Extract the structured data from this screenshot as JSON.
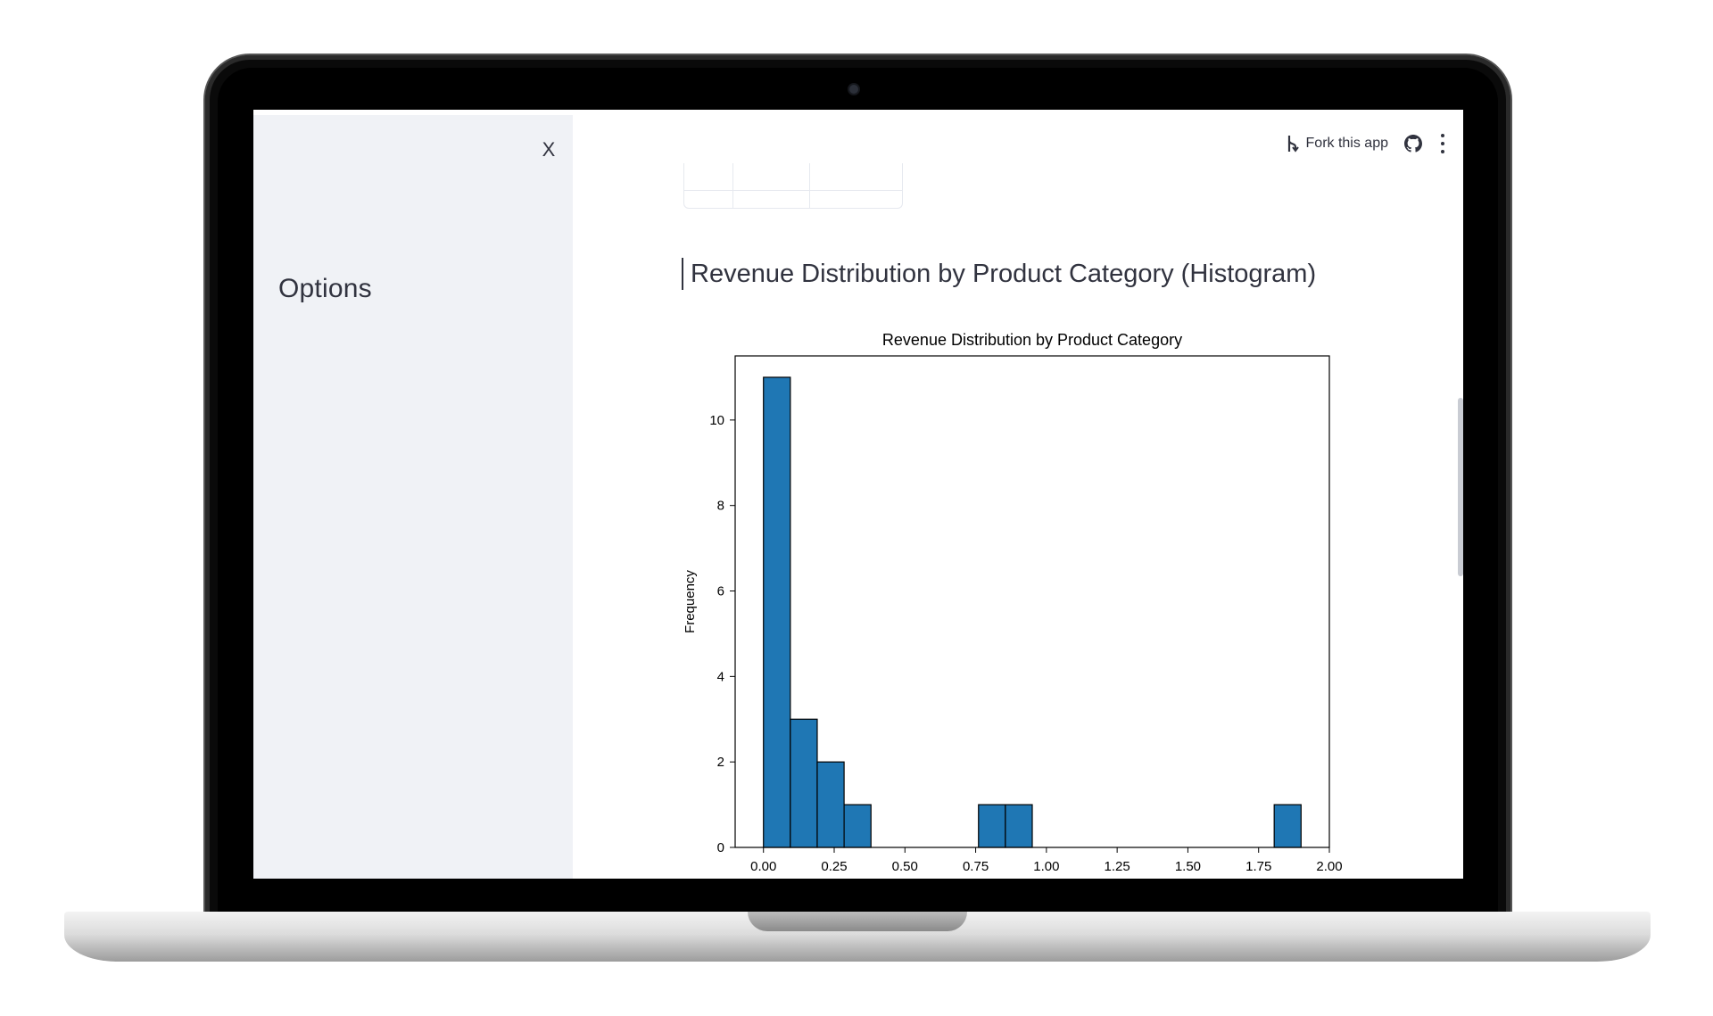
{
  "sidebar": {
    "title": "Options",
    "close_label": "X"
  },
  "toolbar": {
    "fork_label": "Fork this app"
  },
  "section": {
    "title": "Revenue Distribution by Product Category (Histogram)"
  },
  "chart_data": {
    "type": "bar",
    "title": "Revenue Distribution by Product Category",
    "xlabel": "",
    "ylabel": "Frequency",
    "xlim": [
      -0.1,
      2.0
    ],
    "ylim": [
      0,
      11.5
    ],
    "bin_width": 0.095,
    "bins": [
      {
        "x": 0.0,
        "count": 11
      },
      {
        "x": 0.095,
        "count": 3
      },
      {
        "x": 0.19,
        "count": 2
      },
      {
        "x": 0.285,
        "count": 1
      },
      {
        "x": 0.76,
        "count": 1
      },
      {
        "x": 0.855,
        "count": 1
      },
      {
        "x": 1.805,
        "count": 1
      }
    ],
    "x_ticks": [
      "0.00",
      "0.25",
      "0.50",
      "0.75",
      "1.00",
      "1.25",
      "1.50",
      "1.75",
      "2.00"
    ],
    "x_tick_values": [
      0,
      0.25,
      0.5,
      0.75,
      1.0,
      1.25,
      1.5,
      1.75,
      2.0
    ],
    "y_ticks": [
      "0",
      "2",
      "4",
      "6",
      "8",
      "10"
    ],
    "y_tick_values": [
      0,
      2,
      4,
      6,
      8,
      10
    ],
    "grid": false,
    "bar_color": "#1f77b4"
  }
}
